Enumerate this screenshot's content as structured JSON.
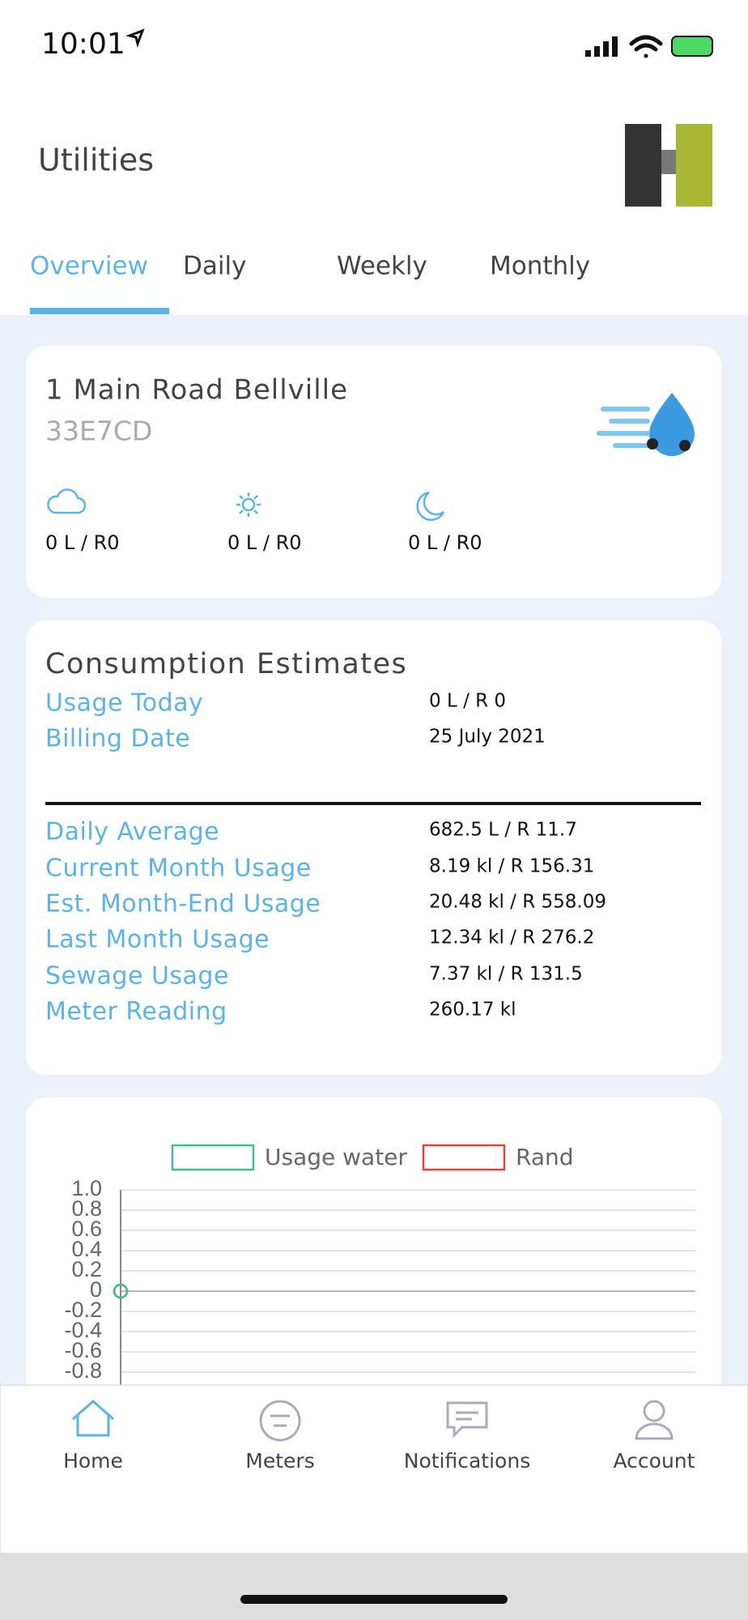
{
  "status_bar": {
    "time": "10:01"
  },
  "header": {
    "title": "Utilities"
  },
  "tabs": [
    "Overview",
    "Daily",
    "Weekly",
    "Monthly"
  ],
  "property": {
    "address": "1 Main Road Bellville",
    "meter_id": "33E7CD",
    "periods": [
      "0 L / R0",
      "0 L / R0",
      "0 L / R0"
    ]
  },
  "estimates": {
    "title": "Consumption Estimates",
    "rows": [
      [
        "Usage Today",
        "0 L / R 0"
      ],
      [
        "Billing Date",
        "25 July 2021"
      ]
    ],
    "details": [
      [
        "Daily Average",
        "682.5 L / R 11.7"
      ],
      [
        "Current Month Usage",
        "8.19 kl / R 156.31"
      ],
      [
        "Est. Month-End Usage",
        "20.48 kl / R 558.09"
      ],
      [
        "Last Month Usage",
        "12.34 kl / R 276.2"
      ],
      [
        "Sewage Usage",
        "7.37 kl / R 131.5"
      ],
      [
        "Meter Reading",
        "260.17 kl"
      ]
    ]
  },
  "chart_data": {
    "type": "line",
    "series": [
      {
        "name": "Usage water",
        "color": "#3cbf8a",
        "values": [
          0
        ]
      },
      {
        "name": "Rand",
        "color": "#e0443a",
        "values": [
          0
        ]
      }
    ],
    "ylim": [
      -1,
      1
    ],
    "yticks": [
      {
        "value": 1,
        "label": "1.0"
      },
      0.8,
      0.6,
      0.4,
      0.2,
      0,
      -0.2,
      -0.4,
      -0.6,
      -0.8
    ],
    "grid": true,
    "legend": "top"
  },
  "nav": [
    "Home",
    "Meters",
    "Notifications",
    "Account"
  ]
}
